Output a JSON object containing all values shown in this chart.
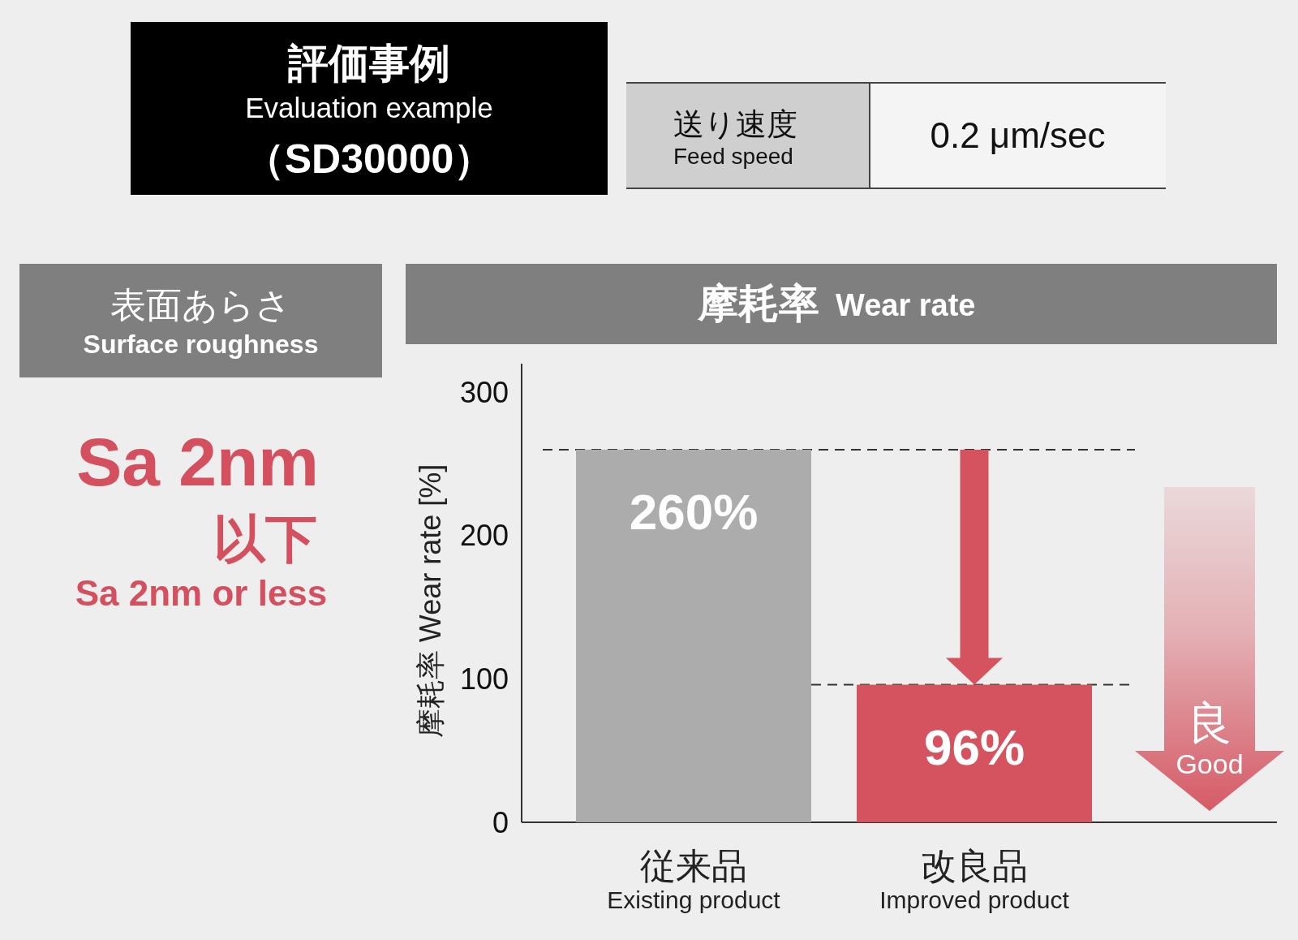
{
  "chart_data": [
    {
      "type": "other",
      "title": "評価事例",
      "subtitle": "Evaluation example",
      "annotations": [
        "（SD30000）"
      ]
    },
    {
      "type": "other",
      "title": "送り速度",
      "subtitle": "Feed speed",
      "annotations": [
        "0.2 μm/sec"
      ]
    },
    {
      "type": "other",
      "title": "表面あらさ",
      "subtitle": "Surface roughness",
      "annotations": [
        "Sa 2nm",
        "以下",
        "Sa 2nm or less"
      ]
    },
    {
      "type": "bar",
      "title": "摩耗率",
      "subtitle": "Wear rate",
      "ylabel": "摩耗率 Wear rate [%]",
      "categories": [
        "従来品\nExisting product",
        "改良品\nImproved product"
      ],
      "values": [
        260,
        96
      ],
      "colors": [
        "#acacac",
        "#d4535f"
      ],
      "value_labels": [
        "260%",
        "96%"
      ],
      "ylim": [
        0,
        320
      ],
      "yticks": [
        0,
        100,
        200,
        300
      ],
      "ref_lines": [
        {
          "axis": "y",
          "value": 260,
          "line_style": "dashed",
          "color": "#333333"
        },
        {
          "axis": "y",
          "value": 96,
          "line_style": "dashed",
          "color": "#333333"
        }
      ],
      "annotations": [
        "良",
        "Good"
      ]
    }
  ]
}
